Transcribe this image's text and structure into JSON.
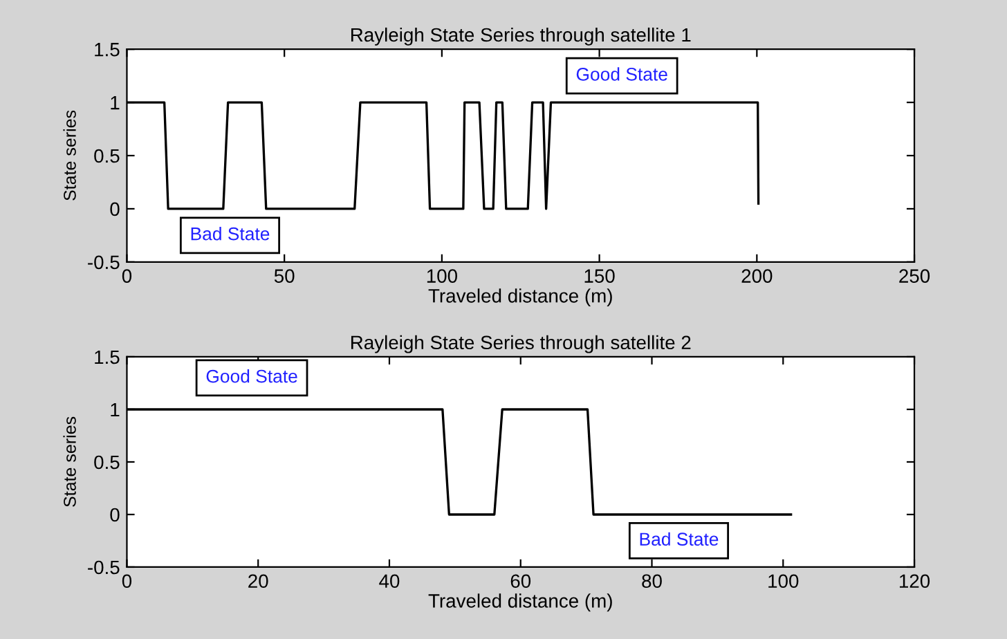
{
  "chart_data": [
    {
      "type": "line",
      "title": "Rayleigh State Series through satellite 1",
      "xlabel": "Traveled distance (m)",
      "ylabel": "State series",
      "series": [
        {
          "color": "#000000",
          "x": [
            0,
            11.9,
            13.1,
            30.6,
            32.1,
            42.8,
            44.2,
            72.3,
            74.1,
            95.1,
            96.2,
            106.8,
            107.2,
            111.9,
            113.4,
            116.3,
            117.3,
            119.2,
            120.4,
            127.3,
            128.7,
            132.1,
            133.1,
            134.6,
            200.3,
            200.5
          ],
          "values": [
            1,
            1,
            0,
            0,
            1,
            1,
            0,
            0,
            1,
            1,
            0,
            0,
            1,
            1,
            0,
            0,
            1,
            1,
            0,
            0,
            1,
            1,
            0,
            1,
            1,
            0.05
          ]
        }
      ],
      "xlim": [
        0,
        250
      ],
      "xticks": [
        0,
        50,
        100,
        150,
        200,
        250
      ],
      "ylim": [
        -0.5,
        1.5
      ],
      "yticks": [
        -0.5,
        0,
        0.5,
        1,
        1.5
      ],
      "grid": false,
      "annotations": [
        "Bad State",
        "Good State"
      ]
    },
    {
      "type": "line",
      "title": "Rayleigh State Series through satellite 2",
      "xlabel": "Traveled distance (m)",
      "ylabel": "State series",
      "series": [
        {
          "color": "#000000",
          "x": [
            0,
            48.1,
            49.1,
            56.0,
            57.2,
            70.2,
            71.1,
            101.2
          ],
          "values": [
            1,
            1,
            0,
            0,
            1,
            1,
            0,
            0
          ]
        }
      ],
      "xlim": [
        0,
        120
      ],
      "xticks": [
        0,
        20,
        40,
        60,
        80,
        100,
        120
      ],
      "ylim": [
        -0.5,
        1.5
      ],
      "yticks": [
        -0.5,
        0,
        0.5,
        1,
        1.5
      ],
      "grid": false,
      "annotations": [
        "Good State",
        "Bad State"
      ]
    }
  ]
}
